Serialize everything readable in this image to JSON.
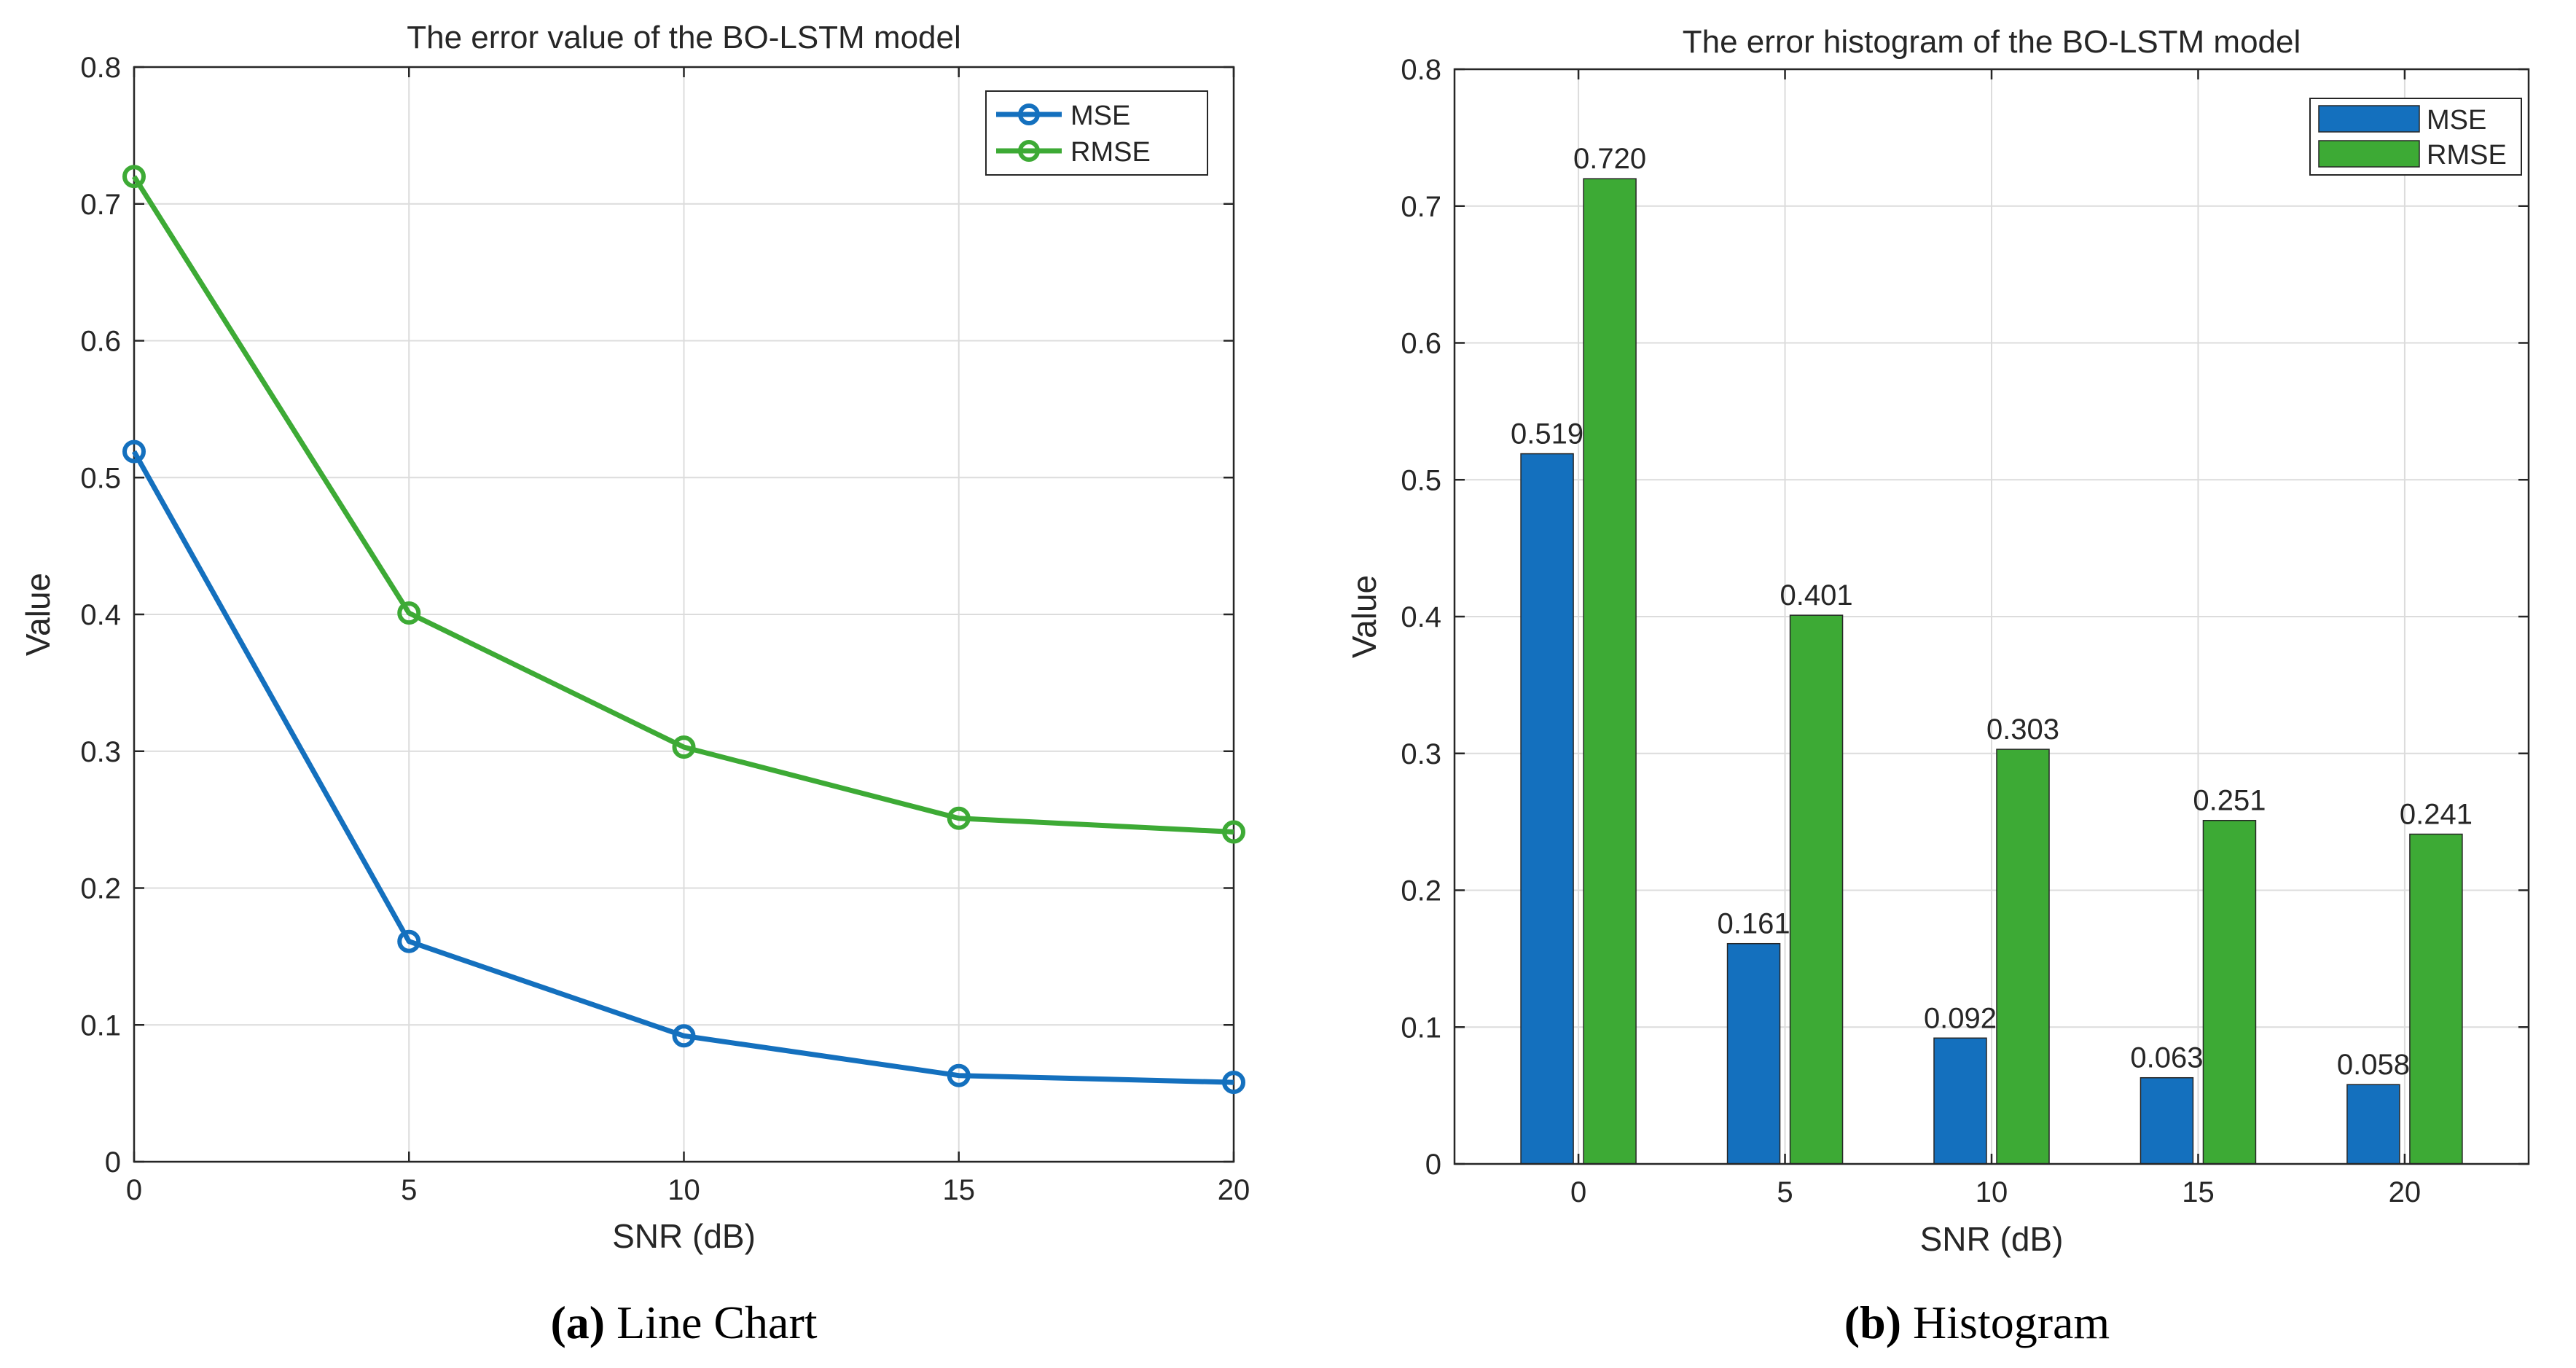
{
  "colors": {
    "mse": "#1470BE",
    "rmse": "#3DAA35",
    "grid": "#DCDCDC",
    "axis": "#262626"
  },
  "chart_data": [
    {
      "type": "line",
      "title": "The error value of the BO-LSTM model",
      "xlabel": "SNR (dB)",
      "ylabel": "Value",
      "x": [
        0,
        5,
        10,
        15,
        20
      ],
      "xlim": [
        0,
        20
      ],
      "ylim": [
        0,
        0.8
      ],
      "xticks": [
        "0",
        "5",
        "10",
        "15",
        "20"
      ],
      "yticks": [
        "0",
        "0.1",
        "0.2",
        "0.3",
        "0.4",
        "0.5",
        "0.6",
        "0.7",
        "0.8"
      ],
      "grid": true,
      "legend_position": "top-right",
      "series": [
        {
          "name": "MSE",
          "values": [
            0.519,
            0.161,
            0.092,
            0.063,
            0.058
          ]
        },
        {
          "name": "RMSE",
          "values": [
            0.72,
            0.401,
            0.303,
            0.251,
            0.241
          ]
        }
      ],
      "caption_letter": "(a)",
      "caption_text": " Line Chart"
    },
    {
      "type": "bar",
      "title": "The error histogram of the BO-LSTM model",
      "xlabel": "SNR (dB)",
      "ylabel": "Value",
      "categories": [
        "0",
        "5",
        "10",
        "15",
        "20"
      ],
      "ylim": [
        0,
        0.8
      ],
      "yticks": [
        "0",
        "0.1",
        "0.2",
        "0.3",
        "0.4",
        "0.5",
        "0.6",
        "0.7",
        "0.8"
      ],
      "grid": true,
      "legend_position": "top-right",
      "series": [
        {
          "name": "MSE",
          "values": [
            0.519,
            0.161,
            0.092,
            0.063,
            0.058
          ],
          "labels": [
            "0.519",
            "0.161",
            "0.092",
            "0.063",
            "0.058"
          ]
        },
        {
          "name": "RMSE",
          "values": [
            0.72,
            0.401,
            0.303,
            0.251,
            0.241
          ],
          "labels": [
            "0.720",
            "0.401",
            "0.303",
            "0.251",
            "0.241"
          ]
        }
      ],
      "caption_letter": "(b)",
      "caption_text": " Histogram"
    }
  ]
}
